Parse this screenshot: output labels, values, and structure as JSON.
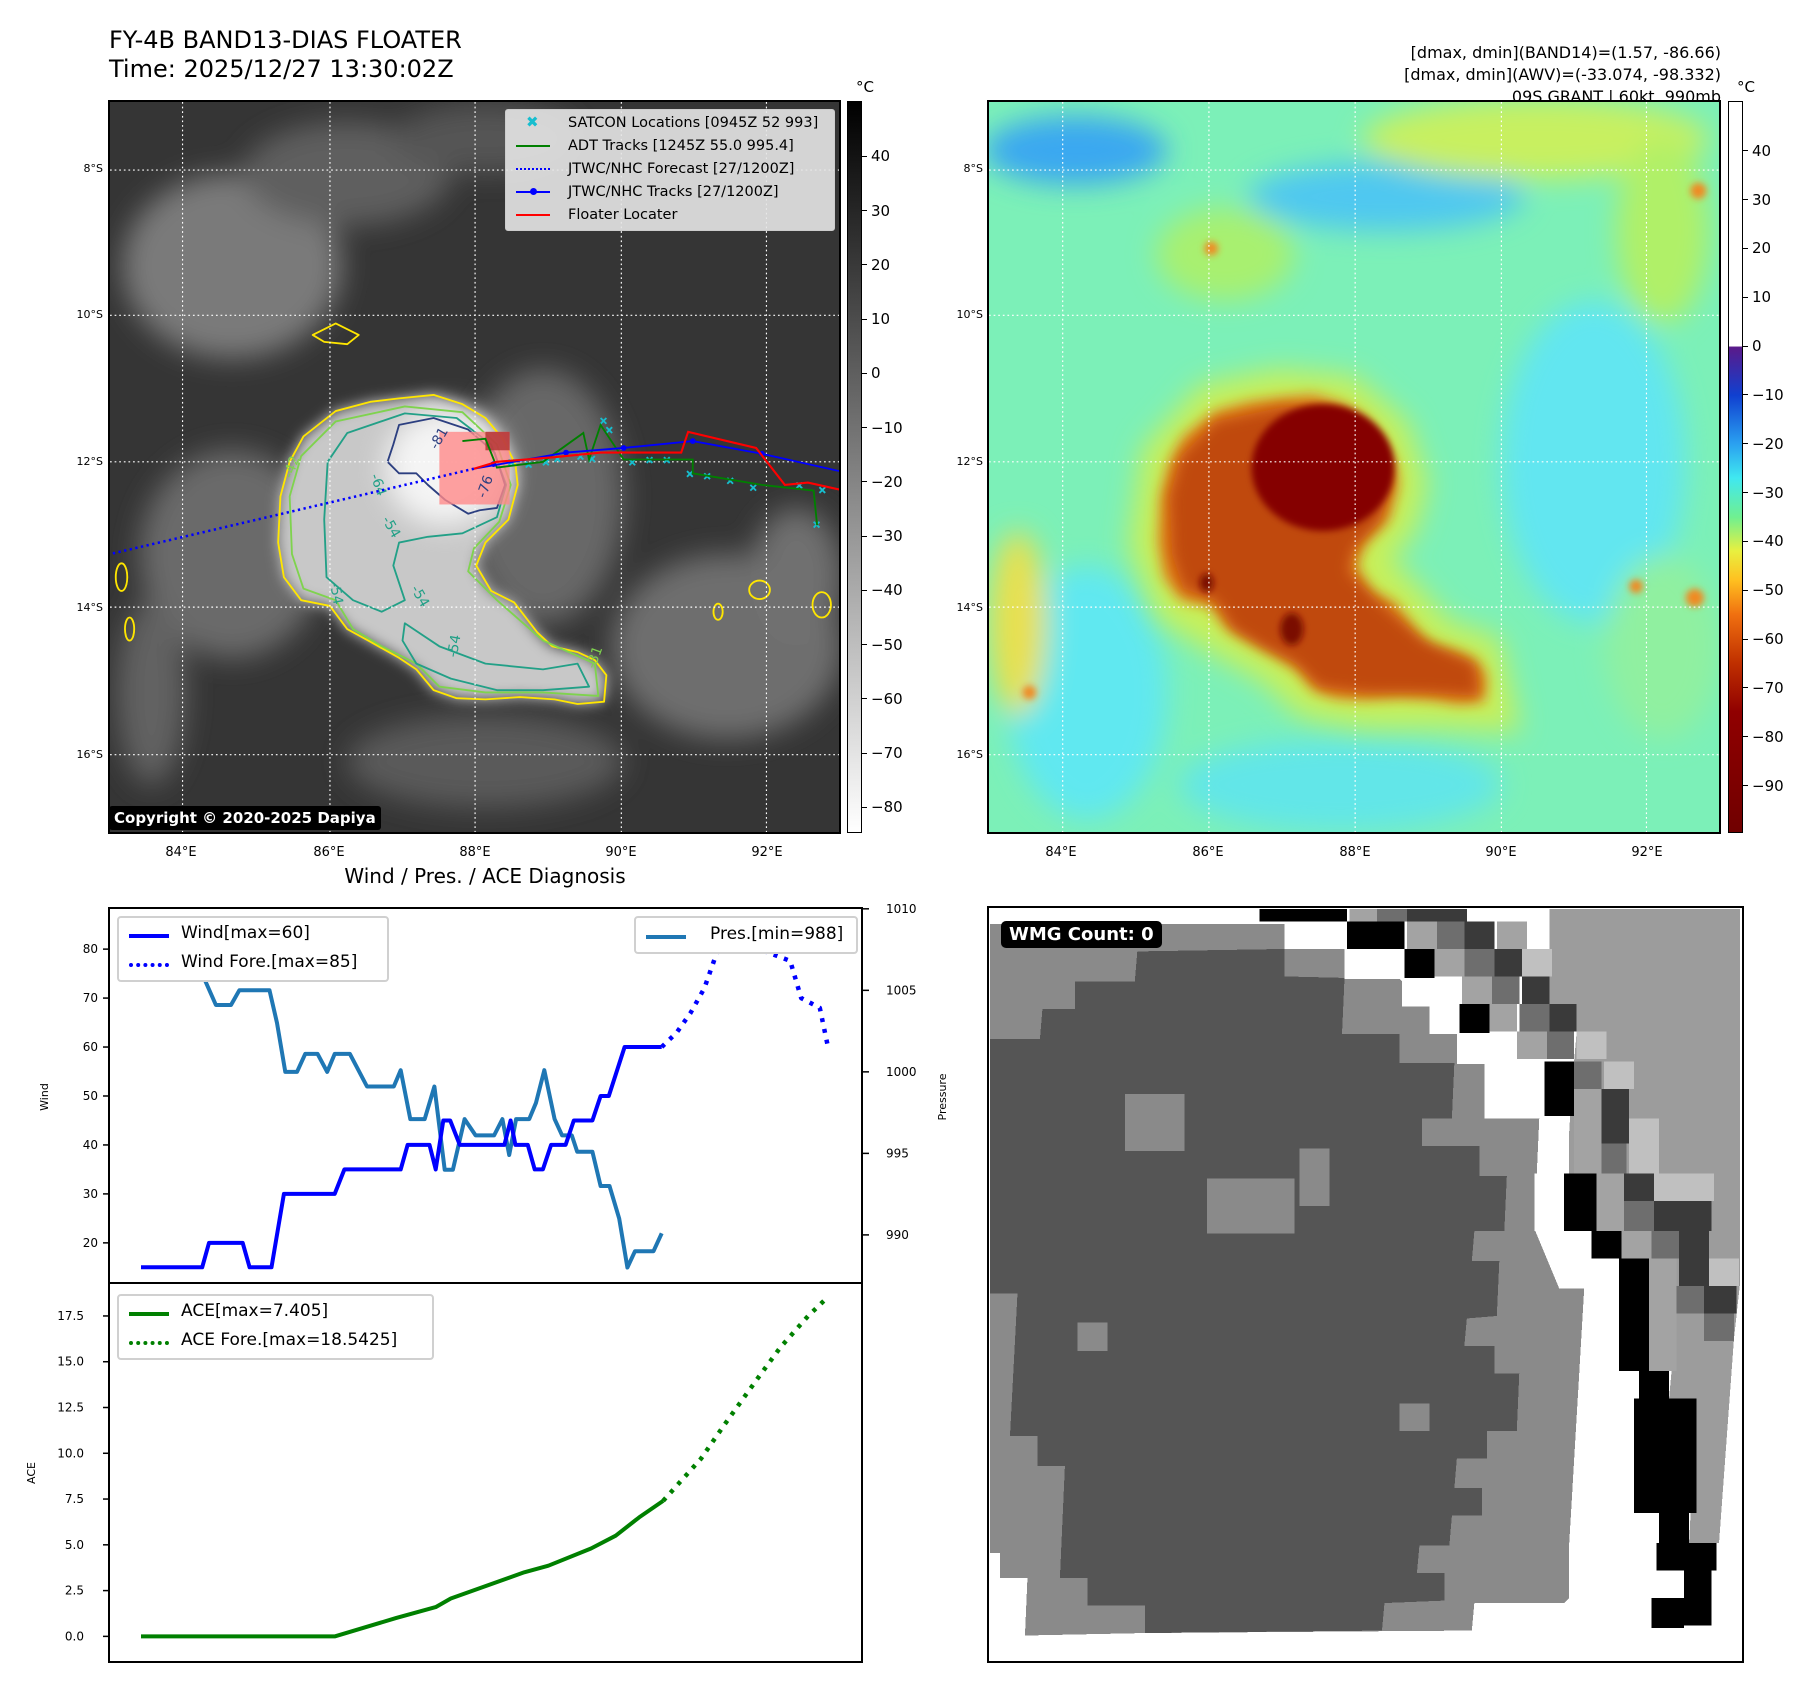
{
  "header": {
    "title_line1": "FY-4B BAND13-DIAS FLOATER",
    "title_line2": "Time: 2025/12/27 13:30:02Z",
    "info_line1": "[dmax, dmin](BAND14)=(1.57, -86.66)",
    "info_line2": "[dmax, dmin](AWV)=(-33.074, -98.332)",
    "info_line3": "09S.GRANT | 60kt, 990mb"
  },
  "map": {
    "lat_labels": [
      "8°S",
      "10°S",
      "12°S",
      "14°S",
      "16°S"
    ],
    "lon_labels": [
      "84°E",
      "86°E",
      "88°E",
      "90°E",
      "92°E"
    ],
    "unit": "°C",
    "copyright": "Copyright © 2020-2025 Dapiya",
    "contour_labels": [
      "-42",
      "-54",
      "-54",
      "-54",
      "-54",
      "-64",
      "-81",
      "-76",
      "-31"
    ],
    "legend": [
      {
        "label": "SATCON Locations [0945Z 52 993]",
        "color": "#17becf"
      },
      {
        "label": "ADT Tracks [1245Z 55.0 995.4]",
        "color": "#008000"
      },
      {
        "label": "JTWC/NHC Forecast [27/1200Z]",
        "color": "#0000ff"
      },
      {
        "label": "JTWC/NHC Tracks [27/1200Z]",
        "color": "#0000ff"
      },
      {
        "label": "Floater Locater",
        "color": "#ff0000"
      }
    ],
    "colorbar_bd": {
      "range": [
        50.2,
        -84.7
      ],
      "ticks": [
        "40",
        "30",
        "20",
        "10",
        "0",
        "−10",
        "−20",
        "−30",
        "−40",
        "−50",
        "−60",
        "−70",
        "−80"
      ],
      "tick_values": [
        40,
        30,
        20,
        10,
        0,
        -10,
        -20,
        -30,
        -40,
        -50,
        -60,
        -70,
        -80
      ]
    },
    "colorbar_awv": {
      "range": [
        50.2,
        -99.7
      ],
      "ticks": [
        "40",
        "30",
        "20",
        "10",
        "0",
        "−10",
        "−20",
        "−30",
        "−40",
        "−50",
        "−60",
        "−70",
        "−80",
        "−90"
      ],
      "tick_values": [
        40,
        30,
        20,
        10,
        0,
        -10,
        -20,
        -30,
        -40,
        -50,
        -60,
        -70,
        -80,
        -90
      ]
    }
  },
  "wmg": {
    "label": "WMG Count: 0"
  },
  "chart_data": [
    {
      "type": "line",
      "title": "Wind / Pres. / ACE Diagnosis",
      "xlim": [
        -4.66,
        104.95
      ],
      "ylabel": "Wind",
      "ylabel_right": "Pressure",
      "ylim": [
        11.8,
        88.4
      ],
      "ylim_right": [
        987.05,
        1010.05
      ],
      "yticks": [
        20,
        30,
        40,
        50,
        60,
        70,
        80
      ],
      "yticks_right": [
        990,
        995,
        1000,
        1005,
        1010
      ],
      "legend_left": [
        "Wind[max=60]",
        "Wind Fore.[max=85]"
      ],
      "legend_right": [
        "Pres.[min=988]"
      ],
      "series": [
        {
          "name": "Wind[max=60]",
          "color": "#0000ff",
          "style": "solid",
          "axis": "left",
          "points": [
            [
              0,
              15
            ],
            [
              8.9,
              15
            ],
            [
              9.9,
              20
            ],
            [
              14.8,
              20
            ],
            [
              15.8,
              15
            ],
            [
              19,
              15
            ],
            [
              20.8,
              30
            ],
            [
              28.2,
              30
            ],
            [
              29.6,
              35
            ],
            [
              37.8,
              35
            ],
            [
              38.8,
              40
            ],
            [
              42,
              40
            ],
            [
              42.9,
              35
            ],
            [
              44,
              45
            ],
            [
              45,
              45
            ],
            [
              46.4,
              40
            ],
            [
              52.9,
              40
            ],
            [
              53.8,
              45
            ],
            [
              54.5,
              40
            ],
            [
              56.3,
              40
            ],
            [
              57.3,
              35
            ],
            [
              58.5,
              35
            ],
            [
              59.7,
              40
            ],
            [
              61.8,
              40
            ],
            [
              63,
              45
            ],
            [
              65.7,
              45
            ],
            [
              66.9,
              50
            ],
            [
              68.1,
              50
            ],
            [
              70.4,
              60
            ],
            [
              75.8,
              60
            ]
          ]
        },
        {
          "name": "Wind Fore.[max=85]",
          "color": "#0000ff",
          "style": "dotted",
          "axis": "left",
          "points": [
            [
              75.8,
              60
            ],
            [
              78,
              63
            ],
            [
              80,
              67
            ],
            [
              82,
              72
            ],
            [
              84,
              80
            ],
            [
              85.5,
              85
            ],
            [
              88,
              84
            ],
            [
              90,
              82
            ],
            [
              91.1,
              79.4
            ],
            [
              94.5,
              77.6
            ],
            [
              96.1,
              70
            ],
            [
              98.8,
              68
            ],
            [
              100,
              60
            ]
          ]
        },
        {
          "name": "Pres.[min=988]",
          "color": "#1f77b4",
          "style": "solid",
          "axis": "right",
          "points": [
            [
              0,
              1009.1
            ],
            [
              2.2,
              1009.1
            ],
            [
              3.9,
              1006
            ],
            [
              8.9,
              1006
            ],
            [
              10.9,
              1004.1
            ],
            [
              13.1,
              1004.1
            ],
            [
              14.3,
              1005
            ],
            [
              18.7,
              1005
            ],
            [
              19.8,
              1003
            ],
            [
              21,
              1000
            ],
            [
              22.7,
              1000
            ],
            [
              23.9,
              1001.1
            ],
            [
              25.7,
              1001.1
            ],
            [
              27.1,
              1000
            ],
            [
              28.2,
              1001.1
            ],
            [
              30.4,
              1001.1
            ],
            [
              32.9,
              999.1
            ],
            [
              36.8,
              999.1
            ],
            [
              37.8,
              1000.1
            ],
            [
              39.2,
              997.1
            ],
            [
              41.3,
              997.1
            ],
            [
              42.7,
              999.1
            ],
            [
              44.2,
              994
            ],
            [
              45.4,
              994
            ],
            [
              47.1,
              997.1
            ],
            [
              48.7,
              996.1
            ],
            [
              51.4,
              996.1
            ],
            [
              52.6,
              997.1
            ],
            [
              53.6,
              994.9
            ],
            [
              54.6,
              997.1
            ],
            [
              56.5,
              997.1
            ],
            [
              57.5,
              998.1
            ],
            [
              58.7,
              1000.1
            ],
            [
              60.2,
              997.1
            ],
            [
              61.3,
              996.1
            ],
            [
              62.7,
              996.1
            ],
            [
              63.5,
              995.1
            ],
            [
              65.7,
              995.1
            ],
            [
              66.9,
              993
            ],
            [
              68.2,
              993
            ],
            [
              69.6,
              991
            ],
            [
              70.8,
              988
            ],
            [
              71.9,
              989
            ],
            [
              74.6,
              989
            ],
            [
              75.8,
              990.1
            ]
          ]
        }
      ]
    },
    {
      "type": "line",
      "xlim": [
        -4.66,
        104.95
      ],
      "ylabel": "ACE",
      "ylim": [
        -1.4,
        19.3
      ],
      "yticks": [
        0,
        2.5,
        5,
        7.5,
        10,
        12.5,
        15,
        17.5
      ],
      "ytick_labels": [
        "0.0",
        "2.5",
        "5.0",
        "7.5",
        "10.0",
        "12.5",
        "15.0",
        "17.5"
      ],
      "legend": [
        "ACE[max=7.405]",
        "ACE Fore.[max=18.5425]"
      ],
      "series": [
        {
          "name": "ACE[max=7.405]",
          "color": "#008000",
          "style": "solid",
          "points": [
            [
              0,
              0
            ],
            [
              28.2,
              0
            ],
            [
              37.1,
              1.0
            ],
            [
              42.9,
              1.6
            ],
            [
              45.1,
              2.07
            ],
            [
              55.8,
              3.5
            ],
            [
              59.3,
              3.86
            ],
            [
              65.5,
              4.8
            ],
            [
              69.1,
              5.5
            ],
            [
              72.5,
              6.5
            ],
            [
              76,
              7.4
            ]
          ]
        },
        {
          "name": "ACE Fore.[max=18.5425]",
          "color": "#008000",
          "style": "dotted",
          "points": [
            [
              76,
              7.4
            ],
            [
              81.5,
              9.7
            ],
            [
              85,
              11.6
            ],
            [
              89.6,
              14
            ],
            [
              93.1,
              15.8
            ],
            [
              97.1,
              17.5
            ],
            [
              100,
              18.54
            ]
          ]
        }
      ]
    }
  ]
}
